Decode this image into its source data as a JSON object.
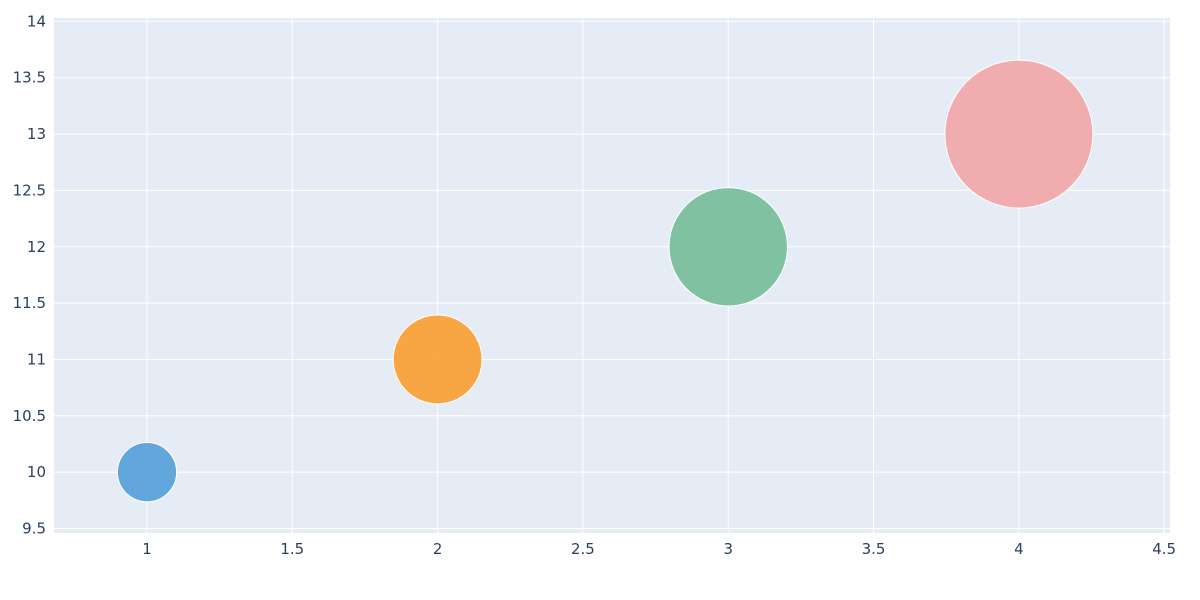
{
  "chart_data": {
    "type": "scatter",
    "variant": "bubble",
    "title": "",
    "xlabel": "",
    "ylabel": "",
    "xlim": [
      0.68,
      4.52
    ],
    "ylim": [
      9.46,
      14.03
    ],
    "x_ticks": [
      1,
      1.5,
      2,
      2.5,
      3,
      3.5,
      4,
      4.5
    ],
    "y_ticks": [
      9.5,
      10,
      10.5,
      11,
      11.5,
      12,
      12.5,
      13,
      13.5,
      14
    ],
    "grid": true,
    "legend": "none",
    "points": [
      {
        "x": 1,
        "y": 10,
        "size": 10,
        "color": "#5ba3d9"
      },
      {
        "x": 2,
        "y": 11,
        "size": 15,
        "color": "#f9a23a"
      },
      {
        "x": 3,
        "y": 12,
        "size": 20,
        "color": "#7abf9c"
      },
      {
        "x": 4,
        "y": 13,
        "size": 25,
        "color": "#f0a9ab"
      }
    ],
    "colors": {
      "plot_background": "#e5ecf6",
      "grid": "#ffffff",
      "tick_text": "#2a3f5f"
    }
  }
}
